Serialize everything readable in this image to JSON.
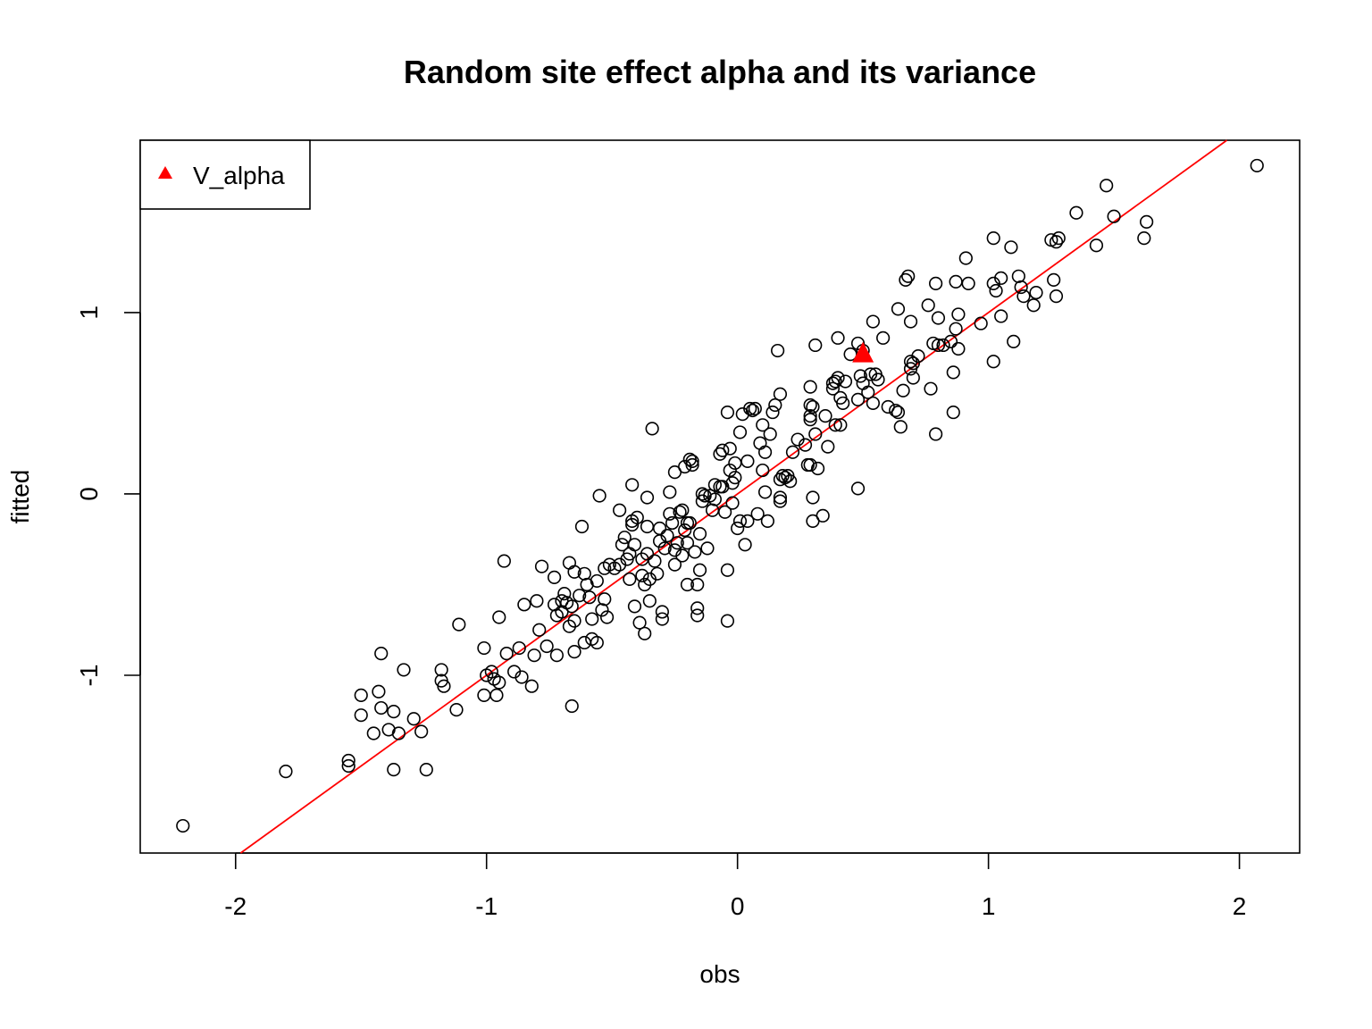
{
  "chart_data": {
    "type": "scatter",
    "title": "Random site effect alpha and its variance",
    "xlabel": "obs",
    "ylabel": "fitted",
    "xlim": [
      -2.38,
      2.24
    ],
    "ylim": [
      -1.98,
      1.95
    ],
    "x_ticks": [
      -2,
      -1,
      0,
      1,
      2
    ],
    "x_tick_labels": [
      "-2",
      "-1",
      "0",
      "1",
      "2"
    ],
    "y_ticks": [
      -1,
      0,
      1
    ],
    "y_tick_labels": [
      "-1",
      "0",
      "1"
    ],
    "grid": false,
    "legend": {
      "position": "top-left",
      "entries": [
        {
          "label": "V_alpha",
          "marker": "filled-triangle",
          "color": "#ff0000"
        }
      ]
    },
    "reference_line": {
      "intercept": 0.0,
      "slope": 1.0,
      "color": "#ff0000"
    },
    "highlight_point": {
      "label": "V_alpha",
      "x": 0.5,
      "y": 0.77,
      "color": "#ff0000"
    },
    "series": [
      {
        "marker": "open-circle",
        "color": "#000000",
        "points": [
          [
            -2.21,
            -1.83
          ],
          [
            -1.8,
            -1.53
          ],
          [
            -1.55,
            -1.47
          ],
          [
            -1.55,
            -1.5
          ],
          [
            -1.5,
            -1.11
          ],
          [
            -1.5,
            -1.22
          ],
          [
            -1.45,
            -1.32
          ],
          [
            -1.43,
            -1.09
          ],
          [
            -1.42,
            -1.18
          ],
          [
            -1.42,
            -0.88
          ],
          [
            -1.39,
            -1.3
          ],
          [
            -1.37,
            -1.52
          ],
          [
            -1.37,
            -1.2
          ],
          [
            -1.35,
            -1.32
          ],
          [
            -1.33,
            -0.97
          ],
          [
            -1.29,
            -1.24
          ],
          [
            -1.26,
            -1.31
          ],
          [
            -1.24,
            -1.52
          ],
          [
            -1.18,
            -0.97
          ],
          [
            -1.18,
            -1.03
          ],
          [
            -1.17,
            -1.06
          ],
          [
            -1.12,
            -1.19
          ],
          [
            -1.11,
            -0.72
          ],
          [
            -1.01,
            -0.85
          ],
          [
            -1.01,
            -1.11
          ],
          [
            -1.0,
            -1.0
          ],
          [
            -0.98,
            -0.98
          ],
          [
            -0.97,
            -1.02
          ],
          [
            -0.96,
            -1.11
          ],
          [
            -0.95,
            -1.04
          ],
          [
            -0.95,
            -0.68
          ],
          [
            -0.93,
            -0.37
          ],
          [
            -0.92,
            -0.88
          ],
          [
            -0.89,
            -0.98
          ],
          [
            -0.87,
            -0.85
          ],
          [
            -0.86,
            -1.01
          ],
          [
            -0.85,
            -0.61
          ],
          [
            -0.82,
            -1.06
          ],
          [
            -0.81,
            -0.89
          ],
          [
            -0.8,
            -0.59
          ],
          [
            -0.79,
            -0.75
          ],
          [
            -0.78,
            -0.4
          ],
          [
            -0.76,
            -0.84
          ],
          [
            -0.73,
            -0.46
          ],
          [
            -0.73,
            -0.61
          ],
          [
            -0.72,
            -0.89
          ],
          [
            -0.72,
            -0.67
          ],
          [
            -0.7,
            -0.59
          ],
          [
            -0.7,
            -0.65
          ],
          [
            -0.69,
            -0.55
          ],
          [
            -0.68,
            -0.6
          ],
          [
            -0.67,
            -0.73
          ],
          [
            -0.67,
            -0.38
          ],
          [
            -0.66,
            -1.17
          ],
          [
            -0.66,
            -0.62
          ],
          [
            -0.65,
            -0.43
          ],
          [
            -0.65,
            -0.87
          ],
          [
            -0.65,
            -0.7
          ],
          [
            -0.63,
            -0.56
          ],
          [
            -0.62,
            -0.18
          ],
          [
            -0.61,
            -0.44
          ],
          [
            -0.61,
            -0.82
          ],
          [
            -0.6,
            -0.5
          ],
          [
            -0.59,
            -0.57
          ],
          [
            -0.58,
            -0.69
          ],
          [
            -0.58,
            -0.8
          ],
          [
            -0.56,
            -0.82
          ],
          [
            -0.56,
            -0.48
          ],
          [
            -0.55,
            -0.01
          ],
          [
            -0.54,
            -0.64
          ],
          [
            -0.53,
            -0.41
          ],
          [
            -0.53,
            -0.58
          ],
          [
            -0.52,
            -0.68
          ],
          [
            -0.51,
            -0.39
          ],
          [
            -0.49,
            -0.41
          ],
          [
            -0.47,
            -0.39
          ],
          [
            -0.47,
            -0.09
          ],
          [
            -0.46,
            -0.28
          ],
          [
            -0.45,
            -0.24
          ],
          [
            -0.44,
            -0.36
          ],
          [
            -0.43,
            -0.47
          ],
          [
            -0.43,
            -0.33
          ],
          [
            -0.42,
            0.05
          ],
          [
            -0.42,
            -0.15
          ],
          [
            -0.42,
            -0.17
          ],
          [
            -0.41,
            -0.28
          ],
          [
            -0.41,
            -0.62
          ],
          [
            -0.4,
            -0.13
          ],
          [
            -0.39,
            -0.71
          ],
          [
            -0.38,
            -0.45
          ],
          [
            -0.38,
            -0.36
          ],
          [
            -0.37,
            -0.77
          ],
          [
            -0.37,
            -0.5
          ],
          [
            -0.36,
            -0.02
          ],
          [
            -0.36,
            -0.33
          ],
          [
            -0.36,
            -0.18
          ],
          [
            -0.35,
            -0.59
          ],
          [
            -0.35,
            -0.47
          ],
          [
            -0.34,
            0.36
          ],
          [
            -0.33,
            -0.37
          ],
          [
            -0.32,
            -0.44
          ],
          [
            -0.31,
            -0.26
          ],
          [
            -0.31,
            -0.19
          ],
          [
            -0.3,
            -0.65
          ],
          [
            -0.3,
            -0.69
          ],
          [
            -0.29,
            -0.3
          ],
          [
            -0.28,
            -0.23
          ],
          [
            -0.27,
            -0.11
          ],
          [
            -0.27,
            0.01
          ],
          [
            -0.26,
            -0.16
          ],
          [
            -0.25,
            -0.31
          ],
          [
            -0.25,
            -0.39
          ],
          [
            -0.25,
            0.12
          ],
          [
            -0.24,
            -0.27
          ],
          [
            -0.23,
            -0.1
          ],
          [
            -0.22,
            -0.34
          ],
          [
            -0.22,
            -0.09
          ],
          [
            -0.21,
            -0.2
          ],
          [
            -0.21,
            0.15
          ],
          [
            -0.2,
            -0.27
          ],
          [
            -0.2,
            -0.5
          ],
          [
            -0.2,
            -0.16
          ],
          [
            -0.19,
            0.19
          ],
          [
            -0.19,
            -0.16
          ],
          [
            -0.18,
            0.16
          ],
          [
            -0.18,
            0.18
          ],
          [
            -0.17,
            -0.32
          ],
          [
            -0.16,
            -0.63
          ],
          [
            -0.16,
            -0.67
          ],
          [
            -0.16,
            -0.5
          ],
          [
            -0.15,
            -0.22
          ],
          [
            -0.15,
            -0.42
          ],
          [
            -0.14,
            0.0
          ],
          [
            -0.14,
            -0.04
          ],
          [
            -0.13,
            -0.01
          ],
          [
            -0.12,
            -0.3
          ],
          [
            -0.11,
            -0.01
          ],
          [
            -0.1,
            -0.09
          ],
          [
            -0.09,
            -0.03
          ],
          [
            -0.09,
            0.05
          ],
          [
            -0.07,
            0.04
          ],
          [
            -0.07,
            0.22
          ],
          [
            -0.06,
            0.24
          ],
          [
            -0.06,
            0.04
          ],
          [
            -0.05,
            -0.1
          ],
          [
            -0.04,
            -0.7
          ],
          [
            -0.04,
            -0.42
          ],
          [
            -0.04,
            0.45
          ],
          [
            -0.03,
            0.13
          ],
          [
            -0.03,
            0.25
          ],
          [
            -0.02,
            -0.05
          ],
          [
            -0.02,
            0.06
          ],
          [
            -0.01,
            0.17
          ],
          [
            -0.01,
            0.09
          ],
          [
            0.0,
            -0.19
          ],
          [
            0.01,
            0.34
          ],
          [
            0.01,
            -0.15
          ],
          [
            0.02,
            0.44
          ],
          [
            0.03,
            -0.28
          ],
          [
            0.04,
            -0.15
          ],
          [
            0.04,
            0.18
          ],
          [
            0.05,
            0.47
          ],
          [
            0.06,
            0.46
          ],
          [
            0.07,
            0.47
          ],
          [
            0.08,
            -0.11
          ],
          [
            0.09,
            0.28
          ],
          [
            0.1,
            0.13
          ],
          [
            0.1,
            0.38
          ],
          [
            0.11,
            0.01
          ],
          [
            0.11,
            0.23
          ],
          [
            0.12,
            -0.15
          ],
          [
            0.13,
            0.33
          ],
          [
            0.14,
            0.45
          ],
          [
            0.15,
            0.49
          ],
          [
            0.16,
            0.79
          ],
          [
            0.17,
            0.55
          ],
          [
            0.17,
            0.08
          ],
          [
            0.17,
            -0.02
          ],
          [
            0.17,
            -0.04
          ],
          [
            0.18,
            0.1
          ],
          [
            0.19,
            0.09
          ],
          [
            0.2,
            0.1
          ],
          [
            0.21,
            0.07
          ],
          [
            0.22,
            0.23
          ],
          [
            0.24,
            0.3
          ],
          [
            0.27,
            0.27
          ],
          [
            0.28,
            0.16
          ],
          [
            0.29,
            0.43
          ],
          [
            0.29,
            0.16
          ],
          [
            0.29,
            0.49
          ],
          [
            0.29,
            0.41
          ],
          [
            0.29,
            0.59
          ],
          [
            0.3,
            -0.02
          ],
          [
            0.3,
            -0.15
          ],
          [
            0.3,
            0.48
          ],
          [
            0.31,
            0.33
          ],
          [
            0.31,
            0.82
          ],
          [
            0.32,
            0.14
          ],
          [
            0.34,
            -0.12
          ],
          [
            0.35,
            0.43
          ],
          [
            0.36,
            0.26
          ],
          [
            0.38,
            0.58
          ],
          [
            0.38,
            0.61
          ],
          [
            0.39,
            0.62
          ],
          [
            0.39,
            0.38
          ],
          [
            0.4,
            0.64
          ],
          [
            0.4,
            0.86
          ],
          [
            0.41,
            0.53
          ],
          [
            0.41,
            0.38
          ],
          [
            0.42,
            0.5
          ],
          [
            0.43,
            0.62
          ],
          [
            0.45,
            0.77
          ],
          [
            0.48,
            0.52
          ],
          [
            0.48,
            0.83
          ],
          [
            0.48,
            0.03
          ],
          [
            0.49,
            0.65
          ],
          [
            0.5,
            0.61
          ],
          [
            0.5,
            0.79
          ],
          [
            0.52,
            0.56
          ],
          [
            0.53,
            0.66
          ],
          [
            0.54,
            0.5
          ],
          [
            0.54,
            0.95
          ],
          [
            0.55,
            0.66
          ],
          [
            0.56,
            0.63
          ],
          [
            0.58,
            0.86
          ],
          [
            0.6,
            0.48
          ],
          [
            0.63,
            0.46
          ],
          [
            0.64,
            1.02
          ],
          [
            0.64,
            0.45
          ],
          [
            0.65,
            0.37
          ],
          [
            0.66,
            0.57
          ],
          [
            0.67,
            1.18
          ],
          [
            0.68,
            1.2
          ],
          [
            0.69,
            0.95
          ],
          [
            0.69,
            0.73
          ],
          [
            0.69,
            0.69
          ],
          [
            0.7,
            0.72
          ],
          [
            0.7,
            0.64
          ],
          [
            0.72,
            0.76
          ],
          [
            0.76,
            1.04
          ],
          [
            0.77,
            0.58
          ],
          [
            0.78,
            0.83
          ],
          [
            0.79,
            0.33
          ],
          [
            0.79,
            1.16
          ],
          [
            0.8,
            0.97
          ],
          [
            0.8,
            0.82
          ],
          [
            0.82,
            0.82
          ],
          [
            0.85,
            0.84
          ],
          [
            0.86,
            0.67
          ],
          [
            0.86,
            0.45
          ],
          [
            0.87,
            1.17
          ],
          [
            0.87,
            0.91
          ],
          [
            0.88,
            0.99
          ],
          [
            0.88,
            0.8
          ],
          [
            0.91,
            1.3
          ],
          [
            0.92,
            1.16
          ],
          [
            0.97,
            0.94
          ],
          [
            1.02,
            1.41
          ],
          [
            1.02,
            1.16
          ],
          [
            1.02,
            0.73
          ],
          [
            1.03,
            1.12
          ],
          [
            1.05,
            1.19
          ],
          [
            1.05,
            0.98
          ],
          [
            1.09,
            1.36
          ],
          [
            1.1,
            0.84
          ],
          [
            1.12,
            1.2
          ],
          [
            1.13,
            1.14
          ],
          [
            1.14,
            1.09
          ],
          [
            1.18,
            1.04
          ],
          [
            1.19,
            1.11
          ],
          [
            1.25,
            1.4
          ],
          [
            1.26,
            1.18
          ],
          [
            1.27,
            1.39
          ],
          [
            1.27,
            1.09
          ],
          [
            1.28,
            1.41
          ],
          [
            1.35,
            1.55
          ],
          [
            1.43,
            1.37
          ],
          [
            1.47,
            1.7
          ],
          [
            1.5,
            1.53
          ],
          [
            1.62,
            1.41
          ],
          [
            1.63,
            1.5
          ],
          [
            2.07,
            1.81
          ]
        ]
      }
    ]
  }
}
